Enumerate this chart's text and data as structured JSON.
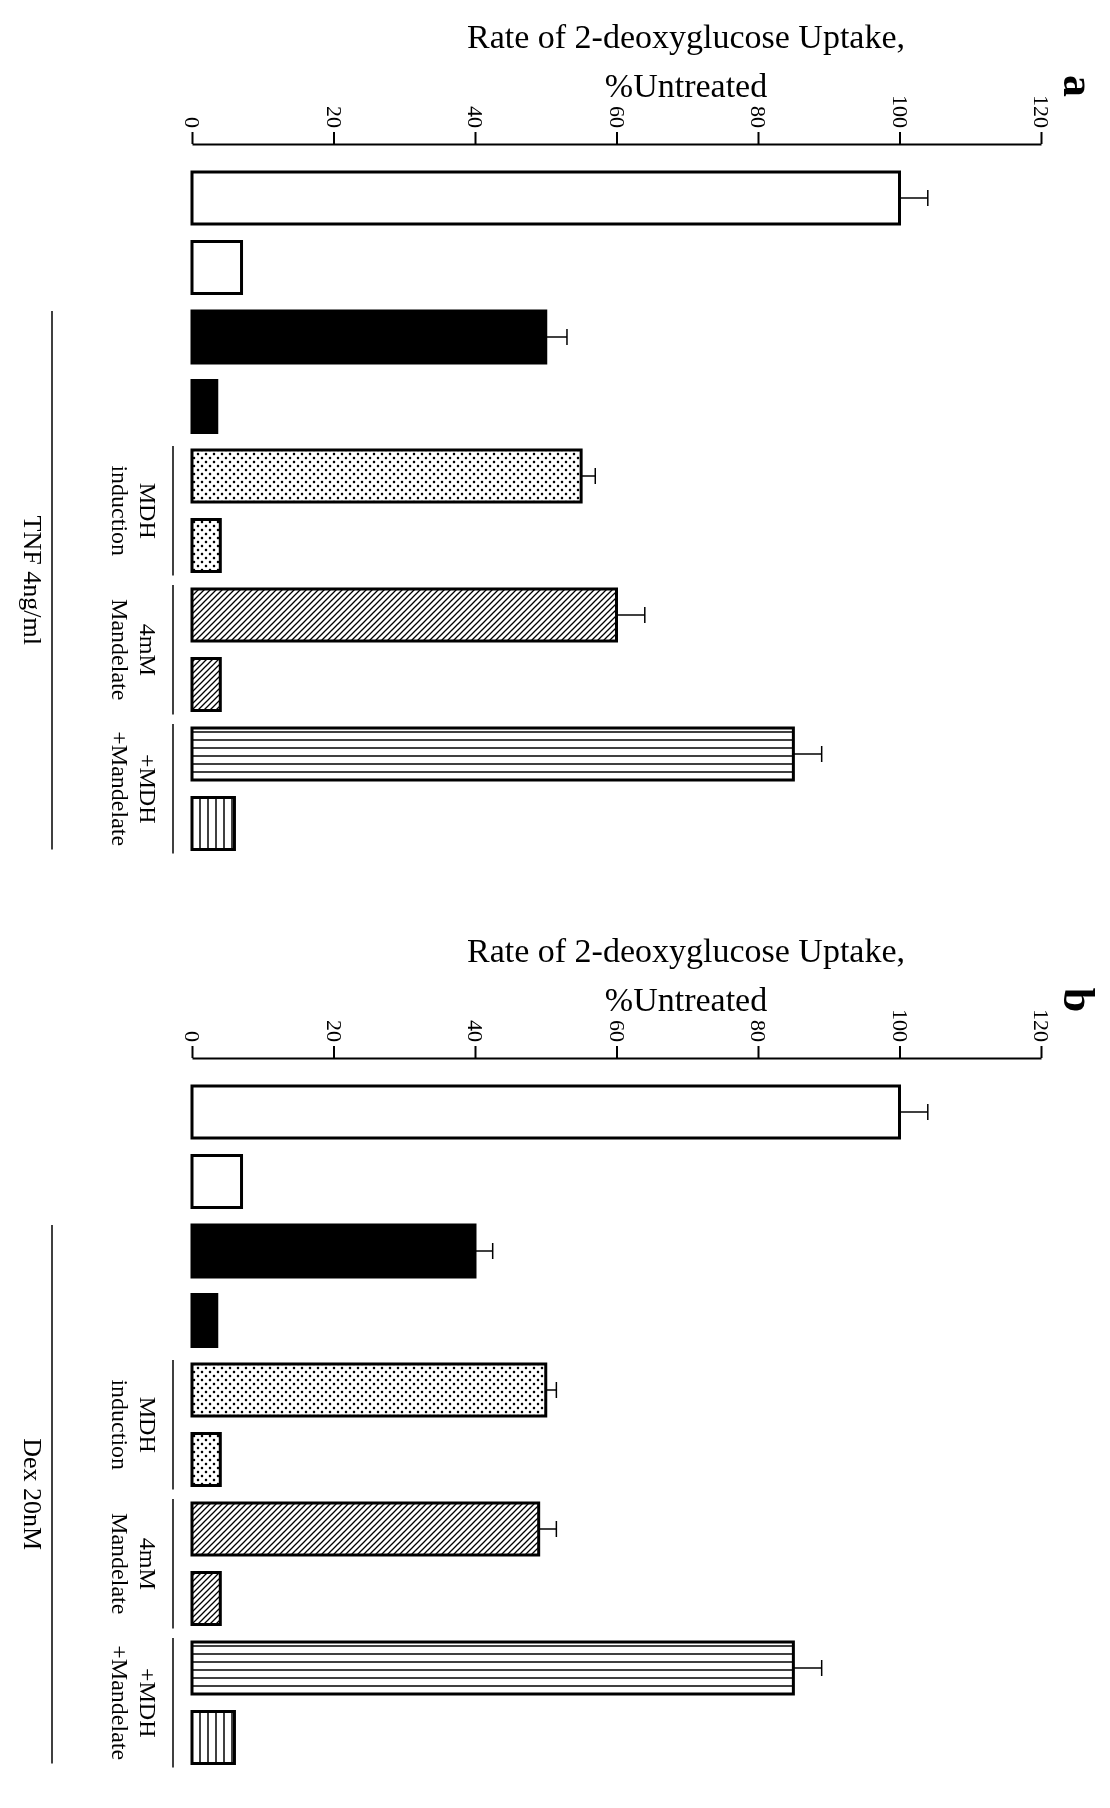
{
  "chart_data": [
    {
      "type": "bar",
      "orientation": "horizontal",
      "title": "a",
      "xlabel": "Rate of 2-deoxyglucose Uptake, %Untreated",
      "categories": [
        null,
        null,
        "MDH induction",
        "4mM Mandelate",
        "+MDH +Mandelate"
      ],
      "series": [
        {
          "colors": [
            "#ffffff",
            "#000000",
            "#000000",
            "#000000",
            "#000000"
          ],
          "values": [
            100,
            50,
            55,
            60,
            85
          ],
          "errors": [
            4,
            3,
            2,
            4,
            4
          ]
        },
        {
          "colors": [
            "#ffffff",
            "#000000",
            "#000000",
            "#000000",
            "#000000"
          ],
          "values": [
            7,
            3.5,
            4,
            4,
            6
          ]
        }
      ],
      "xlim": [
        0,
        120
      ],
      "xticks": [
        0,
        20,
        40,
        60,
        80,
        100,
        120
      ],
      "annotations": [
        "TNF 4ng/ml"
      ]
    },
    {
      "type": "bar",
      "orientation": "horizontal",
      "title": "b",
      "xlabel": "Rate of 2-deoxyglucose Uptake, %Untreated",
      "categories": [
        null,
        null,
        "MDH induction",
        "4mM Mandelate",
        "+MDH +Mandelate"
      ],
      "series": [
        {
          "colors": [
            "#ffffff",
            "#000000",
            "#000000",
            "#000000",
            "#000000"
          ],
          "values": [
            100,
            40,
            50,
            49,
            85
          ],
          "errors": [
            4,
            2.5,
            1.5,
            2.5,
            4
          ]
        },
        {
          "colors": [
            "#ffffff",
            "#000000",
            "#000000",
            "#000000",
            "#000000"
          ],
          "values": [
            7,
            3.5,
            4,
            4,
            6
          ]
        }
      ],
      "xlim": [
        0,
        120
      ],
      "xticks": [
        0,
        20,
        40,
        60,
        80,
        100,
        120
      ],
      "annotations": [
        "Dex 20nM"
      ]
    }
  ]
}
